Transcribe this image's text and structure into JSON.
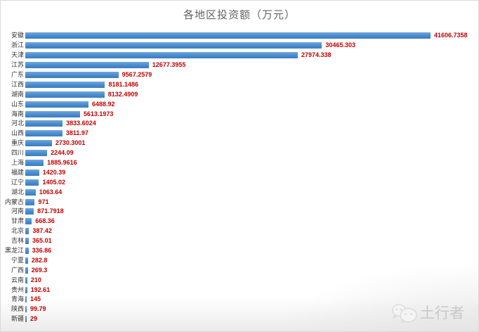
{
  "chart_data": {
    "type": "bar",
    "orientation": "horizontal",
    "title": "各地区投资额（万元）",
    "xlabel": "",
    "ylabel": "",
    "categories": [
      "安徽",
      "浙江",
      "天津",
      "江苏",
      "广东",
      "江西",
      "湖南",
      "山东",
      "海南",
      "河北",
      "山西",
      "重庆",
      "四川",
      "上海",
      "福建",
      "辽宁",
      "湖北",
      "内蒙古",
      "河南",
      "甘肃",
      "北京",
      "吉林",
      "黑龙江",
      "宁夏",
      "广西",
      "云南",
      "贵州",
      "青海",
      "陕西",
      "新疆"
    ],
    "values": [
      41606.7358,
      30465.303,
      27974.338,
      12677.3955,
      9567.2579,
      8181.1486,
      8132.4909,
      6488.92,
      5613.1973,
      3833.6024,
      3811.97,
      2730.3001,
      2244.09,
      1885.9616,
      1420.39,
      1405.02,
      1063.64,
      971,
      871.7918,
      668.36,
      387.42,
      365.01,
      336.86,
      282.8,
      269.3,
      210,
      192.61,
      145,
      99.79,
      29
    ],
    "value_labels": [
      "41606.7358",
      "30465.303",
      "27974.338",
      "12677.3955",
      "9567.2579",
      "8181.1486",
      "8132.4909",
      "6488.92",
      "5613.1973",
      "3833.6024",
      "3811.97",
      "2730.3001",
      "2244.09",
      "1885.9616",
      "1420.39",
      "1405.02",
      "1063.64",
      "971",
      "871.7918",
      "668.36",
      "387.42",
      "365.01",
      "336.86",
      "282.8",
      "269.3",
      "210",
      "192.61",
      "145",
      "99.79",
      "29"
    ],
    "xlim": [
      0,
      41606.7358
    ],
    "grid": false,
    "legend": false
  },
  "watermark": {
    "text": "土行者",
    "icon": "wechat-icon"
  },
  "colors": {
    "bar_top": "#6fa7de",
    "bar_bottom": "#3c7cbe",
    "value_label": "#c00000",
    "category_label": "#333333",
    "title": "#646464",
    "border": "#d9d9d9",
    "watermark": "#c8c8c8",
    "background": "#ffffff"
  }
}
